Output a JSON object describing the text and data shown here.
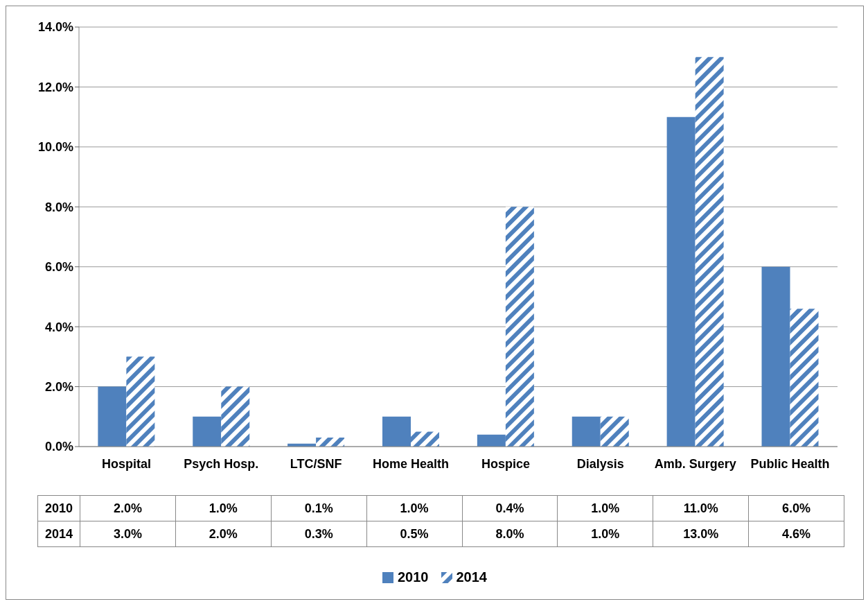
{
  "chart_data": {
    "type": "bar",
    "categories": [
      "Hospital",
      "Psych Hosp.",
      "LTC/SNF",
      "Home Health",
      "Hospice",
      "Dialysis",
      "Amb. Surgery",
      "Public Health"
    ],
    "series": [
      {
        "name": "2010",
        "color": "#4f81bd",
        "values": [
          2.0,
          1.0,
          0.1,
          1.0,
          0.4,
          1.0,
          11.0,
          6.0
        ],
        "value_labels": [
          "2.0%",
          "1.0%",
          "0.1%",
          "1.0%",
          "0.4%",
          "1.0%",
          "11.0%",
          "6.0%"
        ]
      },
      {
        "name": "2014",
        "color": "#4f81bd",
        "values": [
          3.0,
          2.0,
          0.3,
          0.5,
          8.0,
          1.0,
          13.0,
          4.6
        ],
        "value_labels": [
          "3.0%",
          "2.0%",
          "0.3%",
          "0.5%",
          "8.0%",
          "1.0%",
          "13.0%",
          "4.6%"
        ]
      }
    ],
    "ylim": [
      0,
      14
    ],
    "yticks": [
      {
        "value": 0,
        "label": "0.0%"
      },
      {
        "value": 2,
        "label": "2.0%"
      },
      {
        "value": 4,
        "label": "4.0%"
      },
      {
        "value": 6,
        "label": "6.0%"
      },
      {
        "value": 8,
        "label": "8.0%"
      },
      {
        "value": 10,
        "label": "10.0%"
      },
      {
        "value": 12,
        "label": "12.0%"
      },
      {
        "value": 14,
        "label": "14.0%"
      }
    ],
    "grid": "y",
    "legend": "bottom"
  }
}
